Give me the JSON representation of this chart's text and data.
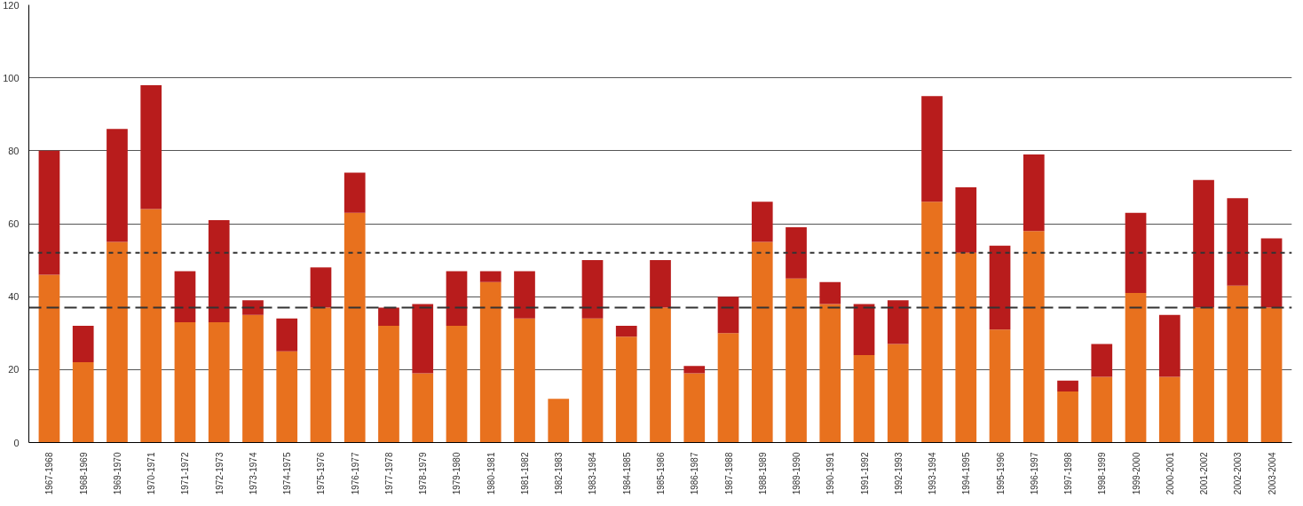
{
  "chart_data": {
    "type": "bar",
    "stacked": true,
    "categories": [
      "1967-1968",
      "1968-1969",
      "1969-1970",
      "1970-1971",
      "1971-1972",
      "1972-1973",
      "1973-1974",
      "1974-1975",
      "1975-1976",
      "1976-1977",
      "1977-1978",
      "1978-1979",
      "1979-1980",
      "1980-1981",
      "1981-1982",
      "1982-1983",
      "1983-1984",
      "1984-1985",
      "1985-1986",
      "1986-1987",
      "1987-1988",
      "1988-1989",
      "1989-1990",
      "1990-1991",
      "1991-1992",
      "1992-1993",
      "1993-1994",
      "1994-1995",
      "1995-1996",
      "1996-1997",
      "1997-1998",
      "1998-1999",
      "1999-2000",
      "2000-2001",
      "2001-2002",
      "2002-2003",
      "2003-2004"
    ],
    "series": [
      {
        "color": "#e8711e",
        "values": [
          46,
          22,
          55,
          64,
          33,
          33,
          35,
          25,
          37,
          63,
          32,
          19,
          32,
          44,
          34,
          12,
          34,
          29,
          37,
          19,
          30,
          55,
          45,
          38,
          24,
          27,
          66,
          52,
          31,
          58,
          14,
          18,
          41,
          18,
          37,
          43,
          37
        ]
      },
      {
        "color": "#b81c1c",
        "values": [
          34,
          10,
          31,
          34,
          14,
          28,
          4,
          9,
          11,
          11,
          5,
          19,
          15,
          3,
          13,
          0,
          16,
          3,
          13,
          2,
          10,
          11,
          14,
          6,
          14,
          12,
          29,
          18,
          23,
          21,
          3,
          9,
          22,
          17,
          35,
          24,
          19
        ]
      }
    ],
    "ylim": [
      0,
      120
    ],
    "yticks": [
      0,
      20,
      40,
      60,
      80,
      100,
      120
    ],
    "grid": "y",
    "ref_lines": [
      {
        "axis": "y",
        "value": 52,
        "color": "#333333",
        "line_style": "dotted"
      },
      {
        "axis": "y",
        "value": 37,
        "color": "#333333",
        "line_style": "dashed"
      }
    ]
  }
}
